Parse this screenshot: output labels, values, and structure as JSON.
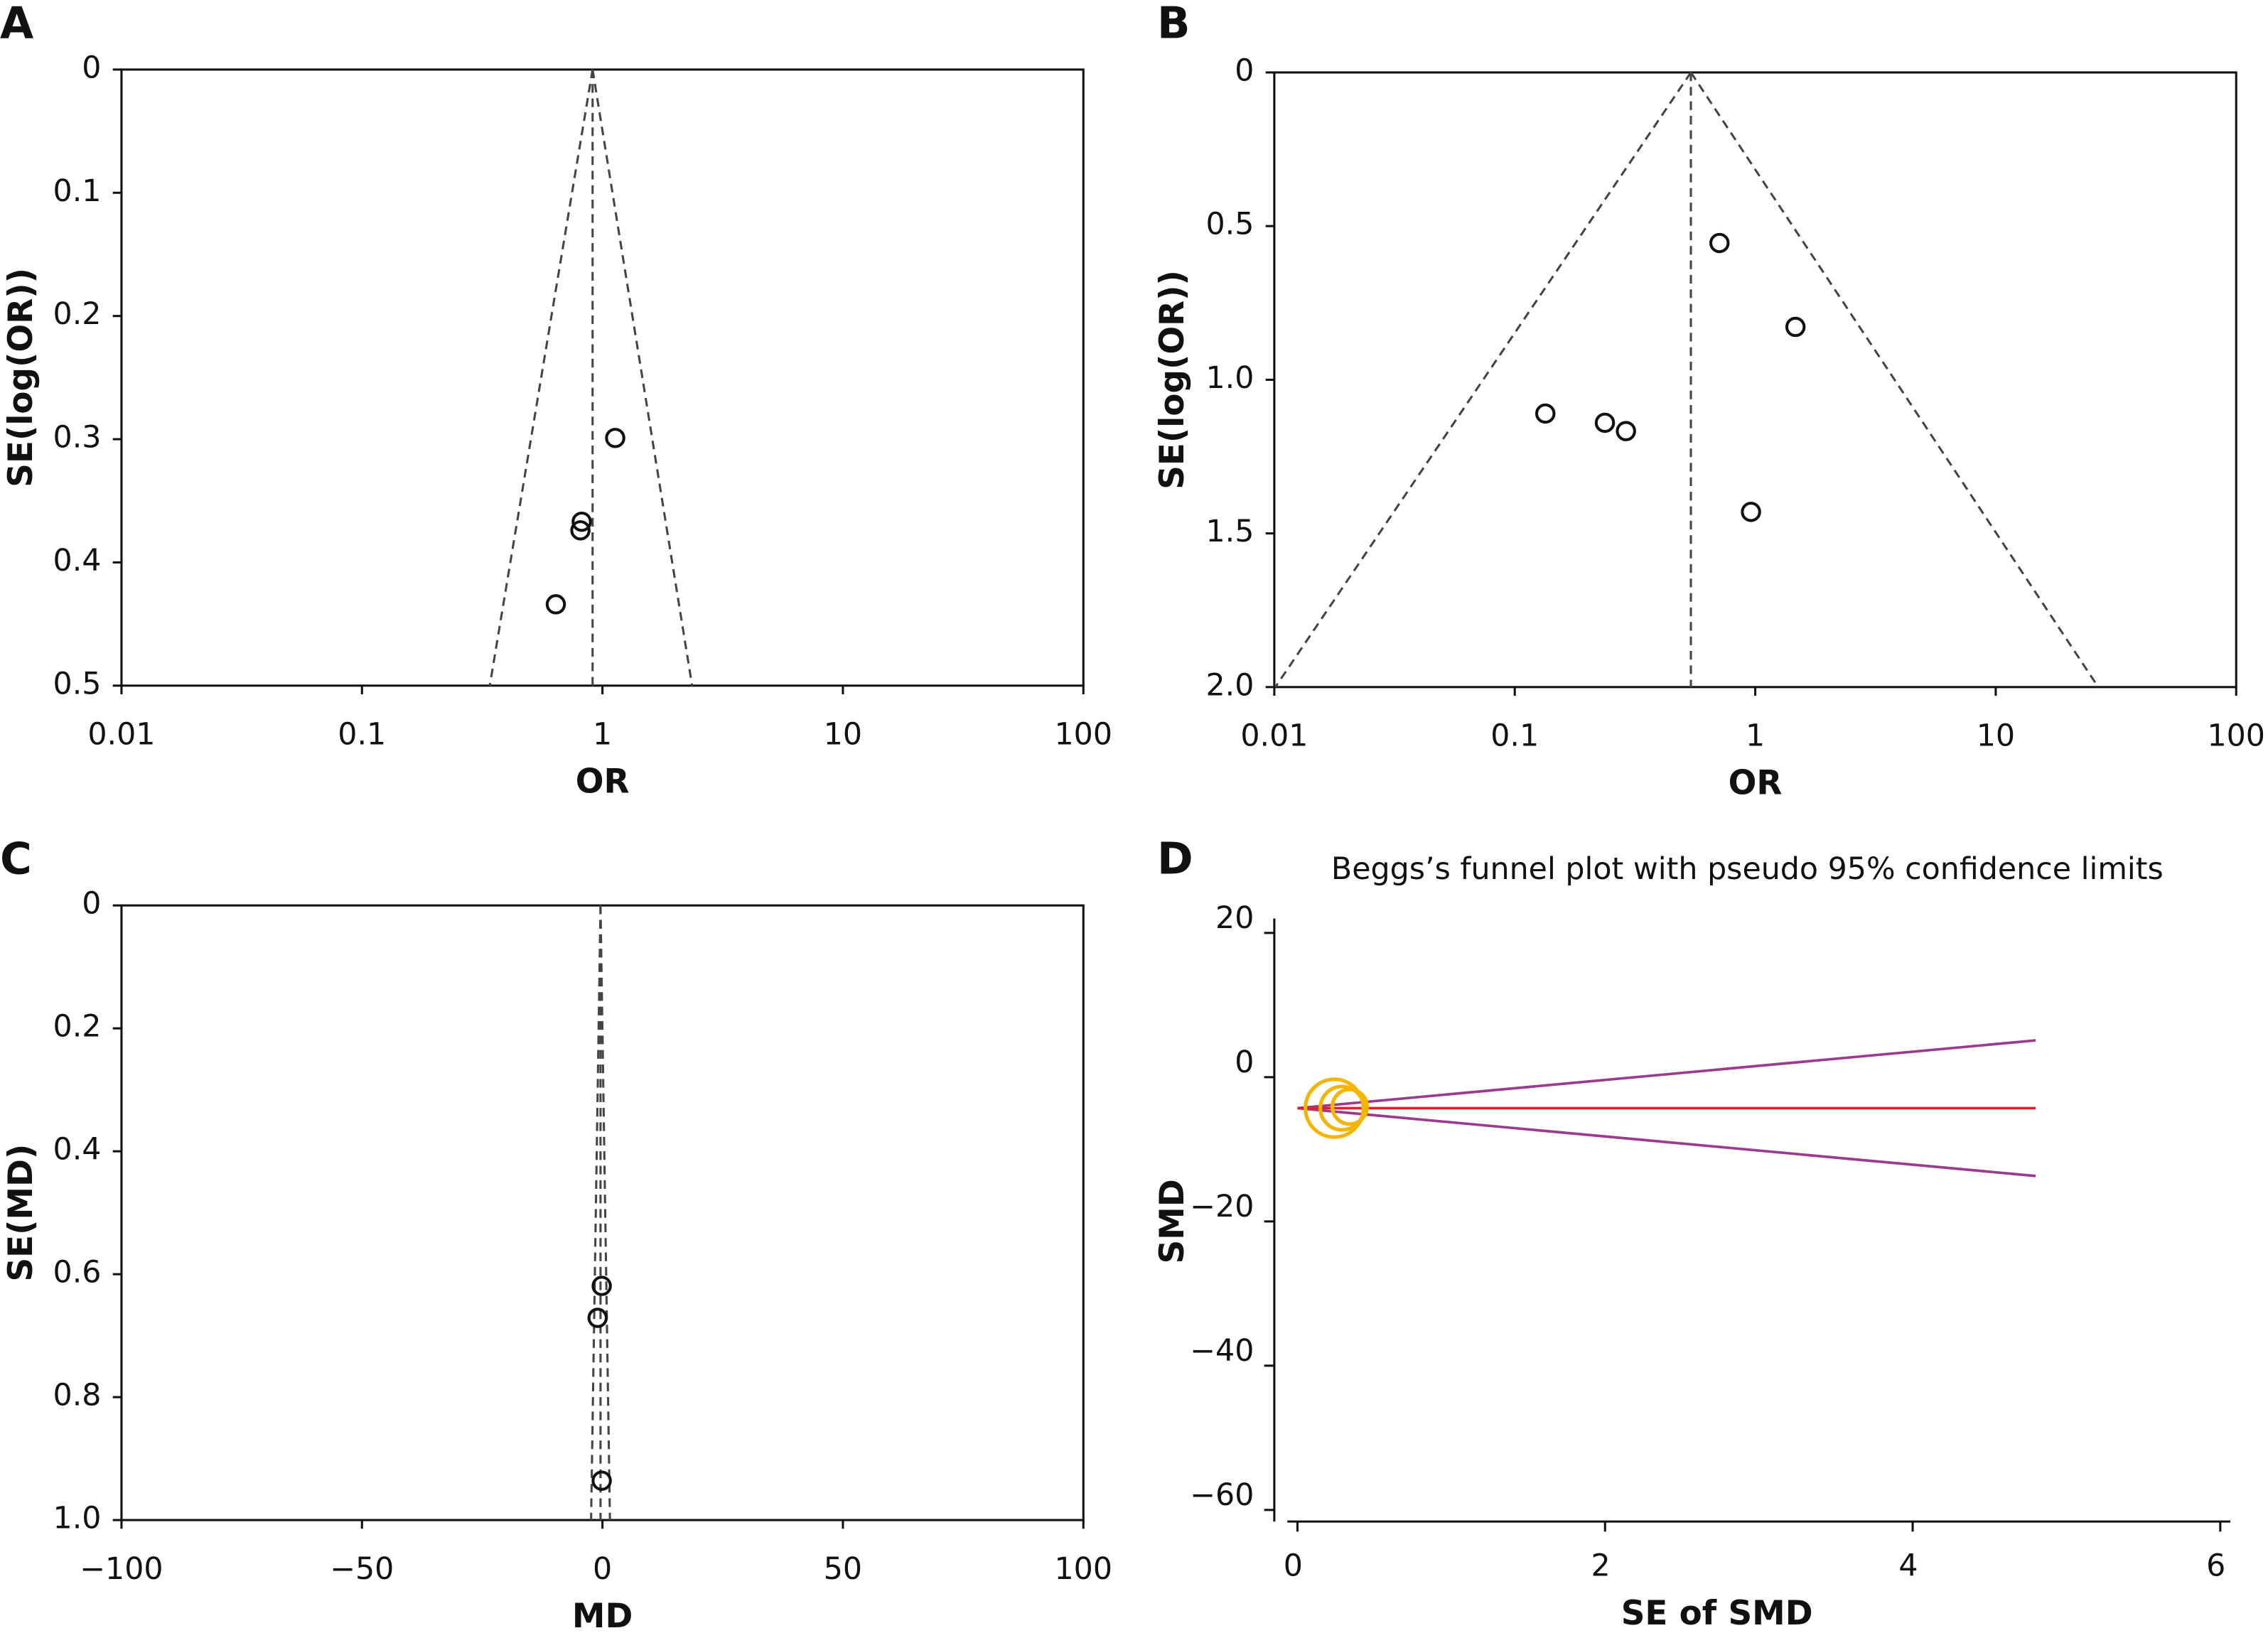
{
  "chart_data": [
    {
      "type": "funnel",
      "label": "A",
      "x_label": "OR",
      "y_label": "SE(log(OR))",
      "xscale": "log",
      "xlim": [
        0.01,
        100
      ],
      "xticks": [
        0.01,
        0.1,
        1,
        10,
        100
      ],
      "ylim": [
        0,
        0.5
      ],
      "yticks": [
        0,
        0.1,
        0.2,
        0.3,
        0.4,
        0.5
      ],
      "y_inverted": true,
      "x": [
        1.13,
        0.82,
        0.81,
        0.64
      ],
      "values": [
        0.299,
        0.367,
        0.374,
        0.434
      ],
      "pooled": 0.91,
      "funnel_y": [
        0,
        0.5
      ],
      "funnel_lower": [
        0.91,
        0.34
      ],
      "funnel_upper": [
        0.91,
        2.36
      ]
    },
    {
      "type": "funnel",
      "label": "B",
      "x_label": "OR",
      "y_label": "SE(log(OR))",
      "xscale": "log",
      "xlim": [
        0.01,
        100
      ],
      "xticks": [
        0.01,
        0.1,
        1,
        10,
        100
      ],
      "ylim": [
        0,
        2
      ],
      "yticks": [
        0,
        0.5,
        {
          "value": 1,
          "label": "1.0"
        },
        1.5,
        {
          "value": 2,
          "label": "2.0"
        }
      ],
      "y_inverted": true,
      "x": [
        0.71,
        1.47,
        0.134,
        0.237,
        0.29,
        0.96
      ],
      "values": [
        0.555,
        0.828,
        1.11,
        1.14,
        1.167,
        1.43
      ],
      "pooled": 0.54,
      "funnel_y": [
        0,
        2
      ],
      "funnel_lower": [
        0.54,
        0.0101
      ],
      "funnel_upper": [
        0.54,
        26.7
      ]
    },
    {
      "type": "funnel",
      "label": "C",
      "x_label": "MD",
      "y_label": "SE(MD)",
      "xscale": "linear",
      "xlim": [
        -100,
        100
      ],
      "xticks": [
        {
          "value": -100,
          "label": "−100"
        },
        {
          "value": -50,
          "label": "−50"
        },
        0,
        50,
        100
      ],
      "ylim": [
        0,
        1
      ],
      "yticks": [
        0,
        0.2,
        0.4,
        0.6,
        0.8,
        {
          "value": 1,
          "label": "1.0"
        }
      ],
      "y_inverted": true,
      "x": [
        -0.15,
        -1.0,
        -0.15
      ],
      "values": [
        0.619,
        0.671,
        0.936
      ],
      "pooled": -0.4,
      "funnel_y": [
        0,
        1
      ],
      "funnel_lower": [
        -0.4,
        -2.36
      ],
      "funnel_upper": [
        -0.4,
        1.56
      ]
    },
    {
      "type": "bubble",
      "label": "D",
      "title": "Beggs’s funnel plot with pseudo 95% confidence limits",
      "x_label": "SE of SMD",
      "y_label": "SMD",
      "xlim": [
        0,
        6
      ],
      "xticks": [
        0,
        2,
        4,
        6
      ],
      "ylim": [
        -60,
        20
      ],
      "yticks": [
        {
          "value": -60,
          "label": "−60"
        },
        {
          "value": -40,
          "label": "−40"
        },
        {
          "value": -20,
          "label": "−20"
        },
        0,
        20
      ],
      "x": [
        0.24,
        0.29,
        0.34
      ],
      "values": [
        -4.3,
        -4.3,
        -4.1
      ],
      "sizes": [
        20,
        15,
        12
      ],
      "color": "#f5b400",
      "fit_x": [
        0,
        4.8
      ],
      "pooled": [
        -4.3,
        -4.3
      ],
      "pooled_color": "#e0202f",
      "limit_lower": [
        -4.3,
        -13.7
      ],
      "limit_upper": [
        -4.3,
        5.1
      ],
      "limit_color": "#9b3b8d"
    }
  ]
}
